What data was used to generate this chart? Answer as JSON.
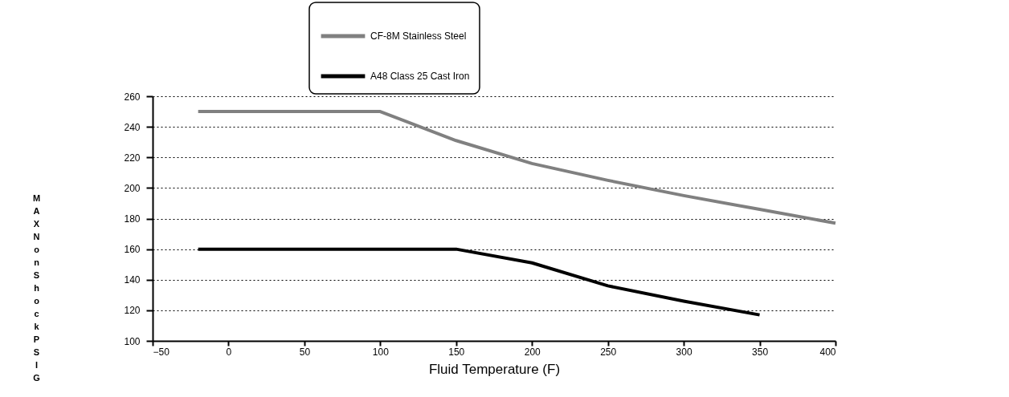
{
  "chart_data": {
    "type": "line",
    "xlabel": "Fluid Temperature (F)",
    "ylabel": "MAX Non Shock PSIG",
    "series": [
      {
        "name": "CF-8M Stainless Steel",
        "color": "#808080",
        "x": [
          -20,
          100,
          150,
          200,
          250,
          300,
          350,
          400
        ],
        "values": [
          250,
          250,
          231,
          216,
          205,
          195,
          186,
          177
        ]
      },
      {
        "name": "A48 Class 25 Cast Iron",
        "color": "#000000",
        "x": [
          -20,
          150,
          200,
          250,
          300,
          350
        ],
        "values": [
          160,
          160,
          151,
          136,
          126,
          117
        ]
      }
    ],
    "xlim": [
      -50,
      400
    ],
    "xticks": [
      -50,
      0,
      50,
      100,
      150,
      200,
      250,
      300,
      350,
      400
    ],
    "ylim": [
      100,
      260
    ],
    "yticks": [
      100,
      120,
      140,
      160,
      180,
      200,
      220,
      240,
      260
    ],
    "grid": "y",
    "legend": "top",
    "line_style": "solid",
    "marker": "none"
  }
}
